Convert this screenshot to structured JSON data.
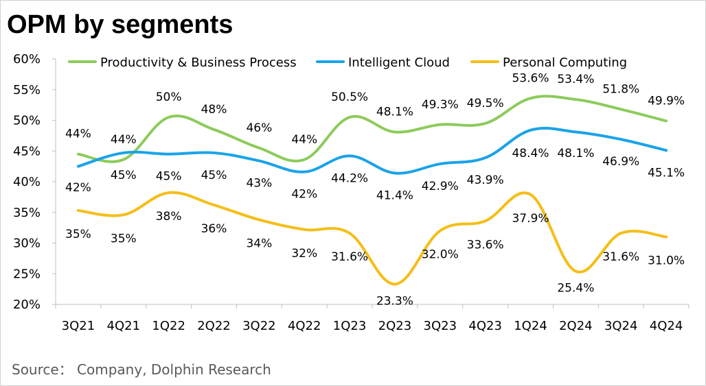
{
  "header": {
    "title": "OPM by segments"
  },
  "footer": {
    "source": "Source： Company, Dolphin Research"
  },
  "chart_data": {
    "type": "line",
    "title": "OPM by segments",
    "xlabel": "",
    "ylabel": "",
    "categories": [
      "3Q21",
      "4Q21",
      "1Q22",
      "2Q22",
      "3Q22",
      "4Q22",
      "1Q23",
      "2Q23",
      "3Q23",
      "4Q23",
      "1Q24",
      "2Q24",
      "3Q24",
      "4Q24"
    ],
    "ylim": [
      0.2,
      0.6
    ],
    "yticks": [
      "60%",
      "55%",
      "50%",
      "45%",
      "40%",
      "35%",
      "30%",
      "25%",
      "20%"
    ],
    "grid": false,
    "legend_position": "top",
    "series": [
      {
        "name": "Productivity & Business Process",
        "color": "#8DCB5B",
        "values": [
          0.445,
          0.436,
          0.505,
          0.485,
          0.455,
          0.436,
          0.505,
          0.481,
          0.493,
          0.495,
          0.536,
          0.534,
          0.518,
          0.499
        ],
        "labels": [
          "44%",
          "44%",
          "50%",
          "48%",
          "46%",
          "44%",
          "50.5%",
          "48.1%",
          "49.3%",
          "49.5%",
          "53.6%",
          "53.4%",
          "51.8%",
          "49.9%"
        ]
      },
      {
        "name": "Intelligent Cloud",
        "color": "#1AA3E8",
        "values": [
          0.425,
          0.447,
          0.445,
          0.447,
          0.434,
          0.416,
          0.442,
          0.414,
          0.429,
          0.439,
          0.484,
          0.481,
          0.469,
          0.451
        ],
        "labels": [
          "42%",
          "45%",
          "45%",
          "45%",
          "43%",
          "42%",
          "44.2%",
          "41.4%",
          "42.9%",
          "43.9%",
          "48.4%",
          "48.1%",
          "46.9%",
          "45.1%"
        ]
      },
      {
        "name": "Personal Computing",
        "color": "#F5BE16",
        "values": [
          0.353,
          0.346,
          0.382,
          0.362,
          0.338,
          0.322,
          0.316,
          0.233,
          0.32,
          0.336,
          0.379,
          0.254,
          0.316,
          0.31
        ],
        "labels": [
          "35%",
          "35%",
          "38%",
          "36%",
          "34%",
          "32%",
          "31.6%",
          "23.3%",
          "32.0%",
          "33.6%",
          "37.9%",
          "25.4%",
          "31.6%",
          "31.0%"
        ]
      }
    ]
  }
}
